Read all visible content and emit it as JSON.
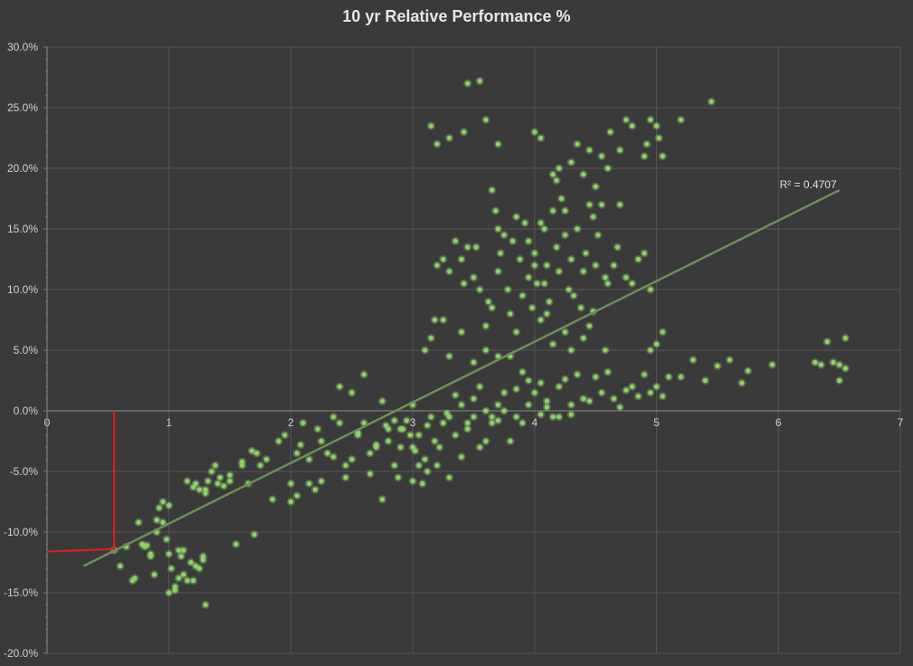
{
  "chart_data": {
    "type": "scatter",
    "title": "10 yr Relative Performance %",
    "xlabel": "",
    "ylabel": "",
    "xlim": [
      0,
      7
    ],
    "ylim": [
      -20,
      30
    ],
    "x_ticks": [
      "0",
      "1",
      "2",
      "3",
      "4",
      "5",
      "6",
      "7"
    ],
    "y_ticks": [
      "-20.0%",
      "-15.0%",
      "-10.0%",
      "-5.0%",
      "0.0%",
      "5.0%",
      "10.0%",
      "15.0%",
      "20.0%",
      "25.0%",
      "30.0%"
    ],
    "grid": true,
    "trendline": {
      "x": [
        0.3,
        6.5
      ],
      "y": [
        -12.8,
        18.2
      ],
      "label": "R² = 0.4707"
    },
    "marker_line": {
      "x": [
        0,
        0.55,
        0.55
      ],
      "y": [
        -11.6,
        -11.4,
        0.0
      ]
    },
    "colors": {
      "points": "#8fd16a",
      "trend": "#6f8f58",
      "marker": "#e02020",
      "grid": "#555555",
      "background": "#3a3a3a"
    },
    "points": [
      [
        0.55,
        -11.5
      ],
      [
        0.65,
        -11.2
      ],
      [
        0.7,
        -14.0
      ],
      [
        0.75,
        -9.2
      ],
      [
        0.78,
        -11.0
      ],
      [
        0.82,
        -11.1
      ],
      [
        0.85,
        -12.0
      ],
      [
        0.88,
        -13.5
      ],
      [
        0.9,
        -9.0
      ],
      [
        0.92,
        -8.0
      ],
      [
        0.95,
        -7.5
      ],
      [
        0.98,
        -10.6
      ],
      [
        1.0,
        -11.8
      ],
      [
        1.02,
        -13.0
      ],
      [
        1.05,
        -14.5
      ],
      [
        1.08,
        -13.8
      ],
      [
        1.1,
        -12.0
      ],
      [
        1.12,
        -11.5
      ],
      [
        1.15,
        -14.0
      ],
      [
        1.18,
        -12.5
      ],
      [
        1.2,
        -6.3
      ],
      [
        1.22,
        -6.0
      ],
      [
        1.25,
        -13.0
      ],
      [
        1.28,
        -12.3
      ],
      [
        1.3,
        -6.5
      ],
      [
        1.32,
        -5.8
      ],
      [
        1.35,
        -5.0
      ],
      [
        1.38,
        -4.5
      ],
      [
        1.42,
        -5.5
      ],
      [
        1.45,
        -6.2
      ],
      [
        1.5,
        -5.3
      ],
      [
        1.55,
        -11.0
      ],
      [
        1.6,
        -4.5
      ],
      [
        1.65,
        -6.0
      ],
      [
        1.68,
        -3.3
      ],
      [
        1.7,
        -10.2
      ],
      [
        1.72,
        -3.5
      ],
      [
        1.8,
        -4.0
      ],
      [
        1.85,
        -7.3
      ],
      [
        1.9,
        -2.5
      ],
      [
        1.95,
        -2.0
      ],
      [
        2.0,
        -7.5
      ],
      [
        2.05,
        -3.5
      ],
      [
        2.08,
        -2.8
      ],
      [
        2.1,
        -1.0
      ],
      [
        2.15,
        -4.0
      ],
      [
        2.2,
        -6.5
      ],
      [
        2.22,
        -1.5
      ],
      [
        2.25,
        -2.5
      ],
      [
        2.3,
        -3.5
      ],
      [
        2.35,
        -0.5
      ],
      [
        2.4,
        -1.0
      ],
      [
        2.45,
        -5.5
      ],
      [
        2.5,
        -4.0
      ],
      [
        2.55,
        -2.0
      ],
      [
        2.6,
        -1.0
      ],
      [
        2.65,
        -5.2
      ],
      [
        2.7,
        -3.0
      ],
      [
        2.75,
        -7.3
      ],
      [
        2.78,
        -1.2
      ],
      [
        2.8,
        -2.5
      ],
      [
        2.85,
        -4.5
      ],
      [
        2.88,
        -5.5
      ],
      [
        2.9,
        -3.0
      ],
      [
        2.92,
        -1.5
      ],
      [
        2.95,
        -0.8
      ],
      [
        3.0,
        -5.8
      ],
      [
        3.02,
        -3.3
      ],
      [
        3.05,
        -2.0
      ],
      [
        3.08,
        -6.0
      ],
      [
        3.1,
        -4.0
      ],
      [
        3.12,
        -1.2
      ],
      [
        3.15,
        -0.5
      ],
      [
        3.18,
        -2.5
      ],
      [
        3.2,
        -4.5
      ],
      [
        3.22,
        -3.0
      ],
      [
        3.25,
        -1.0
      ],
      [
        3.28,
        -0.2
      ],
      [
        3.3,
        -5.5
      ],
      [
        3.35,
        -2.0
      ],
      [
        3.4,
        -3.8
      ],
      [
        3.45,
        -1.5
      ],
      [
        3.5,
        -0.5
      ],
      [
        3.55,
        -3.0
      ],
      [
        3.6,
        -2.5
      ],
      [
        3.65,
        -1.0
      ],
      [
        3.7,
        0.5
      ],
      [
        3.75,
        1.5
      ],
      [
        3.8,
        -2.5
      ],
      [
        3.85,
        1.8
      ],
      [
        3.9,
        -1.0
      ],
      [
        3.95,
        2.5
      ],
      [
        4.0,
        1.5
      ],
      [
        4.05,
        2.3
      ],
      [
        4.1,
        0.8
      ],
      [
        4.15,
        -0.5
      ],
      [
        4.2,
        2.0
      ],
      [
        4.25,
        2.6
      ],
      [
        4.3,
        -0.3
      ],
      [
        4.35,
        3.0
      ],
      [
        4.4,
        1.0
      ],
      [
        4.45,
        0.8
      ],
      [
        4.5,
        2.8
      ],
      [
        4.55,
        1.5
      ],
      [
        4.6,
        3.2
      ],
      [
        4.65,
        1.0
      ],
      [
        4.7,
        0.3
      ],
      [
        4.75,
        1.7
      ],
      [
        4.8,
        2.0
      ],
      [
        4.85,
        1.2
      ],
      [
        4.9,
        3.0
      ],
      [
        4.95,
        1.5
      ],
      [
        5.0,
        2.0
      ],
      [
        5.05,
        1.2
      ],
      [
        5.1,
        2.8
      ],
      [
        5.2,
        2.8
      ],
      [
        5.3,
        4.2
      ],
      [
        5.4,
        2.5
      ],
      [
        5.5,
        3.7
      ],
      [
        5.6,
        4.2
      ],
      [
        5.7,
        2.3
      ],
      [
        5.75,
        3.3
      ],
      [
        5.95,
        3.8
      ],
      [
        6.3,
        4.0
      ],
      [
        6.35,
        3.8
      ],
      [
        6.4,
        5.7
      ],
      [
        6.45,
        4.0
      ],
      [
        6.5,
        2.5
      ],
      [
        6.55,
        6.0
      ],
      [
        6.55,
        3.5
      ],
      [
        6.5,
        3.8
      ],
      [
        3.0,
        -3.0
      ],
      [
        3.05,
        -4.5
      ],
      [
        2.98,
        -2.0
      ],
      [
        3.12,
        -5.0
      ],
      [
        3.0,
        0.5
      ],
      [
        2.9,
        -1.5
      ],
      [
        2.75,
        0.8
      ],
      [
        2.6,
        3.0
      ],
      [
        2.5,
        1.5
      ],
      [
        2.4,
        2.0
      ],
      [
        3.45,
        -1.0
      ],
      [
        3.5,
        1.0
      ],
      [
        3.55,
        2.0
      ],
      [
        3.6,
        0.0
      ],
      [
        3.65,
        -0.5
      ],
      [
        3.3,
        -0.5
      ],
      [
        3.4,
        0.5
      ],
      [
        3.35,
        1.3
      ],
      [
        3.1,
        5.0
      ],
      [
        3.15,
        6.0
      ],
      [
        3.18,
        7.5
      ],
      [
        3.2,
        12.0
      ],
      [
        3.25,
        12.5
      ],
      [
        3.3,
        11.5
      ],
      [
        3.35,
        14.0
      ],
      [
        3.4,
        12.5
      ],
      [
        3.42,
        10.5
      ],
      [
        3.45,
        13.5
      ],
      [
        3.5,
        11.0
      ],
      [
        3.52,
        13.5
      ],
      [
        3.55,
        10.0
      ],
      [
        3.6,
        7.0
      ],
      [
        3.62,
        9.0
      ],
      [
        3.65,
        8.5
      ],
      [
        3.7,
        11.5
      ],
      [
        3.72,
        13.0
      ],
      [
        3.75,
        14.5
      ],
      [
        3.78,
        10.0
      ],
      [
        3.8,
        8.0
      ],
      [
        3.82,
        14.0
      ],
      [
        3.85,
        16.0
      ],
      [
        3.88,
        12.5
      ],
      [
        3.9,
        9.5
      ],
      [
        3.92,
        15.5
      ],
      [
        3.95,
        11.0
      ],
      [
        3.98,
        8.5
      ],
      [
        4.0,
        13.0
      ],
      [
        4.02,
        10.5
      ],
      [
        4.05,
        7.5
      ],
      [
        4.08,
        15.0
      ],
      [
        4.1,
        12.0
      ],
      [
        4.12,
        9.0
      ],
      [
        4.15,
        16.5
      ],
      [
        4.18,
        13.5
      ],
      [
        4.2,
        11.5
      ],
      [
        4.22,
        17.5
      ],
      [
        4.25,
        14.5
      ],
      [
        4.28,
        10.0
      ],
      [
        4.3,
        12.5
      ],
      [
        4.32,
        9.5
      ],
      [
        4.35,
        15.0
      ],
      [
        4.38,
        8.5
      ],
      [
        4.4,
        11.5
      ],
      [
        4.42,
        13.0
      ],
      [
        4.45,
        7.0
      ],
      [
        4.48,
        16.0
      ],
      [
        4.5,
        12.0
      ],
      [
        4.52,
        14.5
      ],
      [
        4.55,
        17.0
      ],
      [
        4.58,
        11.0
      ],
      [
        4.6,
        10.5
      ],
      [
        4.65,
        12.0
      ],
      [
        4.68,
        13.5
      ],
      [
        4.7,
        17.0
      ],
      [
        4.75,
        11.0
      ],
      [
        4.8,
        10.5
      ],
      [
        4.85,
        12.5
      ],
      [
        4.9,
        13.0
      ],
      [
        4.95,
        10.0
      ],
      [
        3.15,
        23.5
      ],
      [
        3.2,
        22.0
      ],
      [
        3.3,
        22.5
      ],
      [
        3.42,
        23.0
      ],
      [
        3.45,
        27.0
      ],
      [
        3.55,
        27.2
      ],
      [
        3.6,
        24.0
      ],
      [
        3.7,
        22.0
      ],
      [
        4.0,
        23.0
      ],
      [
        4.05,
        22.5
      ],
      [
        4.15,
        19.5
      ],
      [
        4.2,
        20.0
      ],
      [
        4.35,
        22.0
      ],
      [
        4.4,
        19.5
      ],
      [
        4.45,
        21.5
      ],
      [
        4.55,
        21.0
      ],
      [
        4.62,
        23.0
      ],
      [
        4.7,
        21.5
      ],
      [
        4.75,
        24.0
      ],
      [
        4.8,
        23.5
      ],
      [
        4.9,
        21.0
      ],
      [
        4.95,
        24.0
      ],
      [
        5.0,
        23.5
      ],
      [
        5.02,
        22.5
      ],
      [
        5.05,
        21.0
      ],
      [
        5.2,
        24.0
      ],
      [
        5.45,
        25.5
      ],
      [
        4.92,
        22.0
      ],
      [
        4.6,
        20.0
      ],
      [
        4.3,
        20.5
      ],
      [
        4.5,
        18.5
      ],
      [
        4.45,
        17.0
      ],
      [
        4.25,
        16.5
      ],
      [
        4.18,
        19.0
      ],
      [
        3.65,
        18.2
      ],
      [
        3.7,
        15.0
      ],
      [
        3.68,
        16.5
      ],
      [
        3.95,
        14.0
      ],
      [
        4.05,
        15.5
      ],
      [
        4.0,
        12.0
      ],
      [
        4.08,
        10.5
      ],
      [
        4.1,
        8.0
      ],
      [
        4.15,
        5.5
      ],
      [
        4.25,
        6.5
      ],
      [
        4.3,
        5.0
      ],
      [
        4.4,
        6.0
      ],
      [
        4.48,
        8.2
      ],
      [
        4.58,
        5.0
      ],
      [
        5.05,
        6.5
      ],
      [
        5.0,
        5.5
      ],
      [
        4.95,
        5.0
      ],
      [
        3.5,
        4.0
      ],
      [
        3.4,
        6.5
      ],
      [
        3.25,
        7.5
      ],
      [
        3.3,
        4.5
      ],
      [
        3.6,
        5.0
      ],
      [
        3.7,
        4.5
      ],
      [
        3.8,
        4.5
      ],
      [
        3.85,
        6.5
      ],
      [
        3.9,
        3.2
      ],
      [
        4.1,
        0.3
      ],
      [
        4.2,
        -0.5
      ],
      [
        4.3,
        0.5
      ],
      [
        4.05,
        -0.3
      ],
      [
        3.95,
        0.5
      ],
      [
        3.85,
        -0.5
      ],
      [
        3.75,
        0.0
      ],
      [
        3.7,
        -0.8
      ],
      [
        2.0,
        -6.0
      ],
      [
        2.05,
        -7.0
      ],
      [
        2.15,
        -6.0
      ],
      [
        2.25,
        -5.8
      ],
      [
        2.35,
        -3.8
      ],
      [
        2.45,
        -4.5
      ],
      [
        2.55,
        -1.8
      ],
      [
        2.65,
        -3.5
      ],
      [
        2.7,
        -2.8
      ],
      [
        2.8,
        -1.5
      ],
      [
        2.85,
        -0.8
      ],
      [
        1.75,
        -4.5
      ],
      [
        1.6,
        -4.2
      ],
      [
        1.5,
        -5.8
      ],
      [
        1.4,
        -6.0
      ],
      [
        1.3,
        -6.8
      ],
      [
        1.25,
        -6.5
      ],
      [
        1.15,
        -5.8
      ],
      [
        1.0,
        -7.8
      ],
      [
        0.95,
        -9.2
      ],
      [
        0.9,
        -10.0
      ],
      [
        0.85,
        -11.8
      ],
      [
        0.8,
        -11.2
      ],
      [
        0.72,
        -13.8
      ],
      [
        0.6,
        -12.8
      ],
      [
        1.0,
        -15.0
      ],
      [
        1.05,
        -14.8
      ],
      [
        1.08,
        -11.5
      ],
      [
        1.12,
        -13.5
      ],
      [
        1.2,
        -14.0
      ],
      [
        1.3,
        -16.0
      ],
      [
        1.22,
        -12.8
      ],
      [
        1.28,
        -12.0
      ]
    ]
  }
}
